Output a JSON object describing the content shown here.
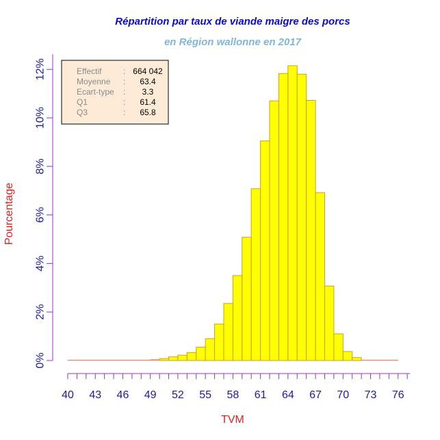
{
  "colors": {
    "title": "#0a0ad0",
    "subtitle": "#7fb6d9",
    "axis_line": "#9b30c8",
    "tick_text": "#1a1aa6",
    "axis_label": "#e0201e",
    "bar_fill": "#ffff00",
    "bar_stroke": "#d39a2a",
    "baseline": "#e08a5a",
    "stats_bg": "#fdebd7",
    "stats_label": "#8a8a8a",
    "stats_value": "#000000"
  },
  "chart_data": {
    "type": "bar",
    "title": "Répartition par taux de viande maigre des porcs",
    "subtitle": "en Région wallonne en 2017",
    "xlabel": "TVM",
    "ylabel": "Pourcentage",
    "xlim": [
      40,
      77
    ],
    "ylim": [
      0,
      12
    ],
    "bin_width": 1,
    "x_ticks": [
      40,
      43,
      46,
      49,
      52,
      55,
      58,
      61,
      64,
      67,
      70,
      73,
      76
    ],
    "y_ticks": [
      0,
      2,
      4,
      6,
      8,
      10,
      12
    ],
    "y_tick_labels": [
      "0%",
      "2%",
      "4%",
      "6%",
      "8%",
      "10%",
      "12%"
    ],
    "bins": [
      {
        "x": 40,
        "value": 0.0
      },
      {
        "x": 41,
        "value": 0.0
      },
      {
        "x": 42,
        "value": 0.0
      },
      {
        "x": 43,
        "value": 0.0
      },
      {
        "x": 44,
        "value": 0.0
      },
      {
        "x": 45,
        "value": 0.0
      },
      {
        "x": 46,
        "value": 0.0
      },
      {
        "x": 47,
        "value": 0.01
      },
      {
        "x": 48,
        "value": 0.02
      },
      {
        "x": 49,
        "value": 0.04
      },
      {
        "x": 50,
        "value": 0.08
      },
      {
        "x": 51,
        "value": 0.15
      },
      {
        "x": 52,
        "value": 0.22
      },
      {
        "x": 53,
        "value": 0.33
      },
      {
        "x": 54,
        "value": 0.55
      },
      {
        "x": 55,
        "value": 0.9
      },
      {
        "x": 56,
        "value": 1.5
      },
      {
        "x": 57,
        "value": 2.35
      },
      {
        "x": 58,
        "value": 3.5
      },
      {
        "x": 59,
        "value": 5.08
      },
      {
        "x": 60,
        "value": 7.08
      },
      {
        "x": 61,
        "value": 9.05
      },
      {
        "x": 62,
        "value": 10.7
      },
      {
        "x": 63,
        "value": 11.83
      },
      {
        "x": 64,
        "value": 12.15
      },
      {
        "x": 65,
        "value": 11.8
      },
      {
        "x": 66,
        "value": 10.72
      },
      {
        "x": 67,
        "value": 6.92
      },
      {
        "x": 68,
        "value": 3.07
      },
      {
        "x": 69,
        "value": 1.1
      },
      {
        "x": 70,
        "value": 0.37
      },
      {
        "x": 71,
        "value": 0.12
      },
      {
        "x": 72,
        "value": 0.0
      },
      {
        "x": 73,
        "value": 0.0
      },
      {
        "x": 74,
        "value": 0.0
      },
      {
        "x": 75,
        "value": 0.0
      }
    ],
    "stats": [
      {
        "label": "Effectif",
        "value": "664 042"
      },
      {
        "label": "Moyenne",
        "value": "63.4"
      },
      {
        "label": "Ecart-type",
        "value": "3.3"
      },
      {
        "label": "Q1",
        "value": "61.4"
      },
      {
        "label": "Q3",
        "value": "65.8"
      }
    ],
    "stats_separator": ":",
    "grid": false,
    "legend": "none"
  }
}
